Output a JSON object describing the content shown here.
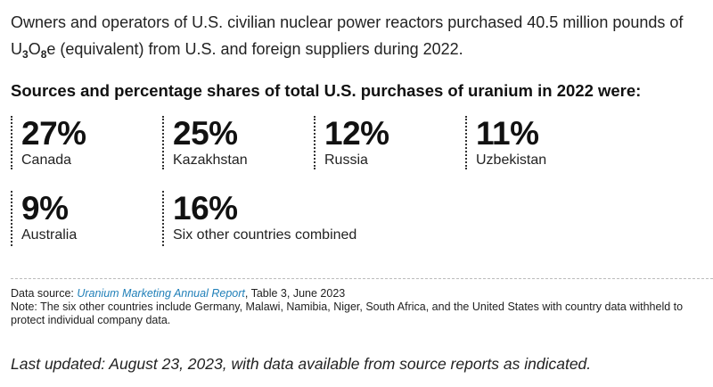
{
  "intro": {
    "line1": "Owners and operators of U.S. civilian nuclear power reactors purchased 40.5 million pounds of",
    "u": "U",
    "u_sub": "3",
    "o": "O",
    "o_sub": "8",
    "line2_rest": "e (equivalent) from U.S. and foreign suppliers during 2022."
  },
  "heading": "Sources and percentage shares of total U.S. purchases of uranium in 2022 were:",
  "stats": [
    {
      "percent": "27%",
      "label": "Canada",
      "value": 27
    },
    {
      "percent": "25%",
      "label": "Kazakhstan",
      "value": 25
    },
    {
      "percent": "12%",
      "label": "Russia",
      "value": 12
    },
    {
      "percent": "11%",
      "label": "Uzbekistan",
      "value": 11
    },
    {
      "percent": "9%",
      "label": "Australia",
      "value": 9
    },
    {
      "percent": "16%",
      "label": "Six other countries combined",
      "value": 16
    }
  ],
  "source": {
    "prefix": "Data source: ",
    "link_text": "Uranium Marketing Annual Report",
    "suffix": ", Table 3, June 2023",
    "note": "Note: The six other countries include Germany, Malawi, Namibia, Niger, South Africa, and the United States with country data withheld to protect individual company data."
  },
  "last_updated": "Last updated: August 23, 2023, with data available from source reports as indicated.",
  "colors": {
    "link": "#1f7fb8",
    "text": "#222222",
    "divider": "#bbbbbb"
  }
}
